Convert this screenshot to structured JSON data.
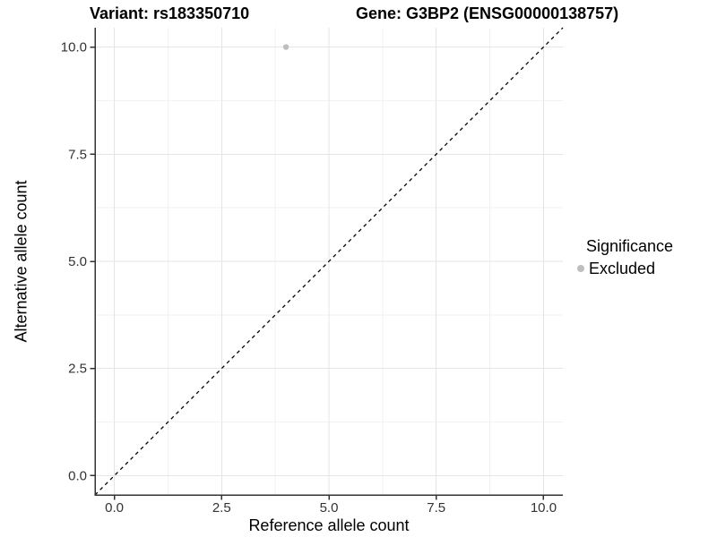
{
  "chart_data": {
    "type": "scatter",
    "title_left": "Variant: rs183350710",
    "title_right": "Gene: G3BP2 (ENSG00000138757)",
    "xlabel": "Reference allele count",
    "ylabel": "Alternative allele count",
    "xlim": [
      -0.45,
      10.45
    ],
    "ylim": [
      -0.45,
      10.45
    ],
    "xticks": [
      0,
      2.5,
      5,
      7.5,
      10
    ],
    "yticks": [
      0,
      2.5,
      5,
      7.5,
      10
    ],
    "xtick_labels": [
      "0.0",
      "2.5",
      "5.0",
      "7.5",
      "10.0"
    ],
    "ytick_labels": [
      "0.0",
      "2.5",
      "5.0",
      "7.5",
      "10.0"
    ],
    "x_minor_ticks": [
      1.25,
      3.75,
      6.25,
      8.75
    ],
    "y_minor_ticks": [
      1.25,
      3.75,
      6.25,
      8.75
    ],
    "grid": true,
    "legend_position": "right",
    "legend_title": "Significance",
    "series": [
      {
        "name": "Excluded",
        "color": "#bebebe",
        "points": [
          {
            "x": 4,
            "y": 10
          }
        ]
      }
    ],
    "reference_line": {
      "type": "identity",
      "equation": "y = x",
      "style": "dashed",
      "color": "#000000"
    },
    "colors": {
      "grid_major": "#e5e5e5",
      "grid_minor": "#f2f2f2",
      "axis_line": "#333333",
      "tick_text": "#333333",
      "background": "#ffffff"
    }
  }
}
